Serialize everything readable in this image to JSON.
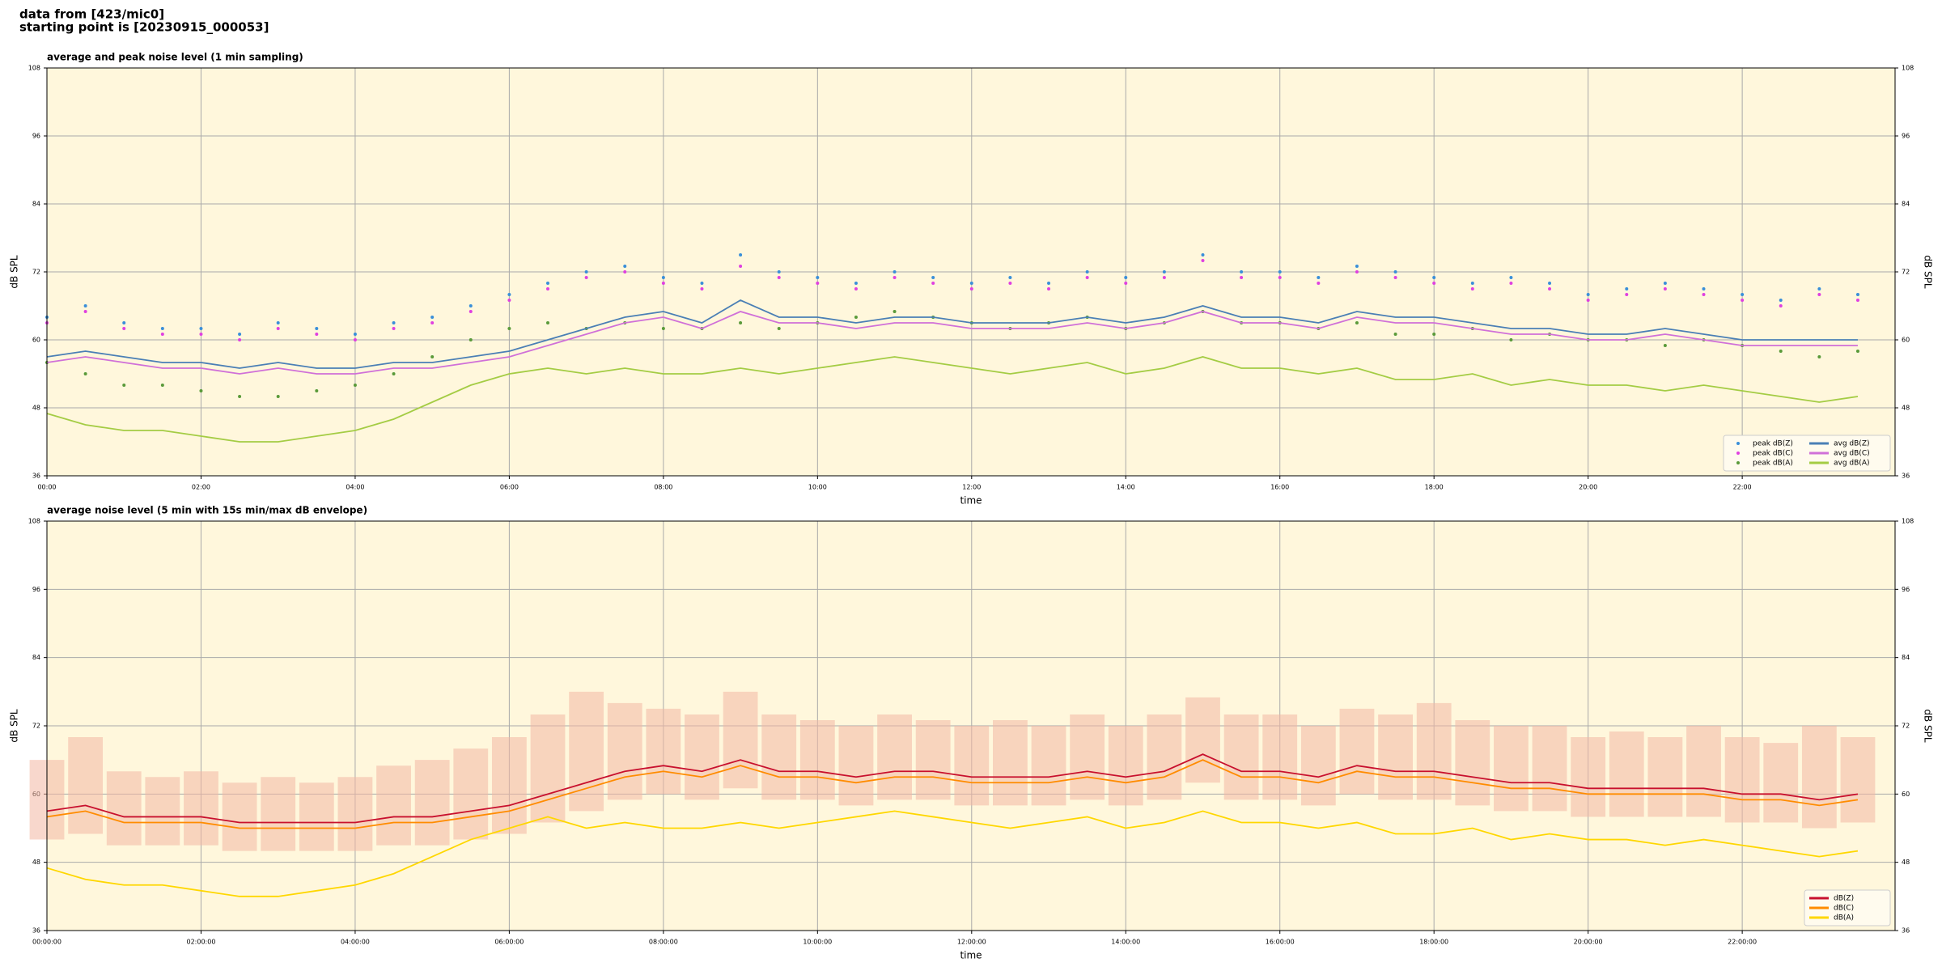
{
  "header": {
    "line1": "data from [423/mic0]",
    "line2": "starting point is [20230915_000053]"
  },
  "chart_data": [
    {
      "type": "line",
      "title": "average and peak noise level (1 min sampling)",
      "xlabel": "time",
      "ylabel": "dB SPL",
      "x": [
        "00:00",
        "00:30",
        "01:00",
        "01:30",
        "02:00",
        "02:30",
        "03:00",
        "03:30",
        "04:00",
        "04:30",
        "05:00",
        "05:30",
        "06:00",
        "06:30",
        "07:00",
        "07:30",
        "08:00",
        "08:30",
        "09:00",
        "09:30",
        "10:00",
        "10:30",
        "11:00",
        "11:30",
        "12:00",
        "12:30",
        "13:00",
        "13:30",
        "14:00",
        "14:30",
        "15:00",
        "15:30",
        "16:00",
        "16:30",
        "17:00",
        "17:30",
        "18:00",
        "18:30",
        "19:00",
        "19:30",
        "20:00",
        "20:30",
        "21:00",
        "21:30",
        "22:00",
        "22:30",
        "23:00",
        "23:30"
      ],
      "xlim": [
        "00:00",
        "23:59"
      ],
      "xticks": [
        "00:00",
        "02:00",
        "04:00",
        "06:00",
        "08:00",
        "10:00",
        "12:00",
        "14:00",
        "16:00",
        "18:00",
        "20:00",
        "22:00"
      ],
      "ylim": [
        36,
        108
      ],
      "yticks": [
        36,
        48,
        60,
        72,
        84,
        96,
        108
      ],
      "grid": true,
      "background": "#fff7dc",
      "legend": "lower right",
      "legend_columns": 2,
      "series": [
        {
          "name": "peak dB(Z)",
          "style": "points",
          "color": "#3a8fd9",
          "values": [
            64,
            66,
            63,
            62,
            62,
            61,
            63,
            62,
            61,
            63,
            64,
            66,
            68,
            70,
            72,
            73,
            71,
            70,
            75,
            72,
            71,
            70,
            72,
            71,
            70,
            71,
            70,
            72,
            71,
            72,
            75,
            72,
            72,
            71,
            73,
            72,
            71,
            70,
            71,
            70,
            68,
            69,
            70,
            69,
            68,
            67,
            69,
            68
          ]
        },
        {
          "name": "peak dB(C)",
          "style": "points",
          "color": "#e040e0",
          "values": [
            63,
            65,
            62,
            61,
            61,
            60,
            62,
            61,
            60,
            62,
            63,
            65,
            67,
            69,
            71,
            72,
            70,
            69,
            73,
            71,
            70,
            69,
            71,
            70,
            69,
            70,
            69,
            71,
            70,
            71,
            74,
            71,
            71,
            70,
            72,
            71,
            70,
            69,
            70,
            69,
            67,
            68,
            69,
            68,
            67,
            66,
            68,
            67
          ]
        },
        {
          "name": "peak dB(A)",
          "style": "points",
          "color": "#5a9a3a",
          "values": [
            56,
            54,
            52,
            52,
            51,
            50,
            50,
            51,
            52,
            54,
            57,
            60,
            62,
            63,
            62,
            63,
            62,
            62,
            63,
            62,
            63,
            64,
            65,
            64,
            63,
            62,
            63,
            64,
            62,
            63,
            65,
            63,
            63,
            62,
            63,
            61,
            61,
            62,
            60,
            61,
            60,
            60,
            59,
            60,
            59,
            58,
            57,
            58
          ]
        },
        {
          "name": "avg dB(Z)",
          "style": "line",
          "color": "#4a7fb5",
          "values": [
            57,
            58,
            57,
            56,
            56,
            55,
            56,
            55,
            55,
            56,
            56,
            57,
            58,
            60,
            62,
            64,
            65,
            63,
            67,
            64,
            64,
            63,
            64,
            64,
            63,
            63,
            63,
            64,
            63,
            64,
            66,
            64,
            64,
            63,
            65,
            64,
            64,
            63,
            62,
            62,
            61,
            61,
            62,
            61,
            60,
            60,
            60,
            60
          ]
        },
        {
          "name": "avg dB(C)",
          "style": "line",
          "color": "#d070d8",
          "values": [
            56,
            57,
            56,
            55,
            55,
            54,
            55,
            54,
            54,
            55,
            55,
            56,
            57,
            59,
            61,
            63,
            64,
            62,
            65,
            63,
            63,
            62,
            63,
            63,
            62,
            62,
            62,
            63,
            62,
            63,
            65,
            63,
            63,
            62,
            64,
            63,
            63,
            62,
            61,
            61,
            60,
            60,
            61,
            60,
            59,
            59,
            59,
            59
          ]
        },
        {
          "name": "avg dB(A)",
          "style": "line",
          "color": "#a4cc44",
          "values": [
            47,
            45,
            44,
            44,
            43,
            42,
            42,
            43,
            44,
            46,
            49,
            52,
            54,
            55,
            54,
            55,
            54,
            54,
            55,
            54,
            55,
            56,
            57,
            56,
            55,
            54,
            55,
            56,
            54,
            55,
            57,
            55,
            55,
            54,
            55,
            53,
            53,
            54,
            52,
            53,
            52,
            52,
            51,
            52,
            51,
            50,
            49,
            50
          ]
        }
      ]
    },
    {
      "type": "line",
      "title": "average noise level (5 min with 15s min/max dB envelope)",
      "xlabel": "time",
      "ylabel": "dB SPL",
      "x": [
        "00:00:00",
        "00:30:00",
        "01:00:00",
        "01:30:00",
        "02:00:00",
        "02:30:00",
        "03:00:00",
        "03:30:00",
        "04:00:00",
        "04:30:00",
        "05:00:00",
        "05:30:00",
        "06:00:00",
        "06:30:00",
        "07:00:00",
        "07:30:00",
        "08:00:00",
        "08:30:00",
        "09:00:00",
        "09:30:00",
        "10:00:00",
        "10:30:00",
        "11:00:00",
        "11:30:00",
        "12:00:00",
        "12:30:00",
        "13:00:00",
        "13:30:00",
        "14:00:00",
        "14:30:00",
        "15:00:00",
        "15:30:00",
        "16:00:00",
        "16:30:00",
        "17:00:00",
        "17:30:00",
        "18:00:00",
        "18:30:00",
        "19:00:00",
        "19:30:00",
        "20:00:00",
        "20:30:00",
        "21:00:00",
        "21:30:00",
        "22:00:00",
        "22:30:00",
        "23:00:00",
        "23:30:00"
      ],
      "xlim": [
        "00:00:00",
        "23:59:00"
      ],
      "xticks": [
        "00:00:00",
        "02:00:00",
        "04:00:00",
        "06:00:00",
        "08:00:00",
        "10:00:00",
        "12:00:00",
        "14:00:00",
        "16:00:00",
        "18:00:00",
        "20:00:00",
        "22:00:00"
      ],
      "ylim": [
        36,
        108
      ],
      "yticks": [
        36,
        48,
        60,
        72,
        84,
        96,
        108
      ],
      "grid": true,
      "background": "#fff7dc",
      "legend": "lower right",
      "legend_columns": 1,
      "envelope": {
        "color": "#f4b8a4",
        "lower": [
          52,
          53,
          51,
          51,
          51,
          50,
          50,
          50,
          50,
          51,
          51,
          52,
          53,
          55,
          57,
          59,
          60,
          59,
          61,
          59,
          59,
          58,
          59,
          59,
          58,
          58,
          58,
          59,
          58,
          59,
          62,
          59,
          59,
          58,
          60,
          59,
          59,
          58,
          57,
          57,
          56,
          56,
          56,
          56,
          55,
          55,
          54,
          55
        ],
        "upper": [
          66,
          70,
          64,
          63,
          64,
          62,
          63,
          62,
          63,
          65,
          66,
          68,
          70,
          74,
          78,
          76,
          75,
          74,
          78,
          74,
          73,
          72,
          74,
          73,
          72,
          73,
          72,
          74,
          72,
          74,
          77,
          74,
          74,
          72,
          75,
          74,
          76,
          73,
          72,
          72,
          70,
          71,
          70,
          72,
          70,
          69,
          72,
          70
        ]
      },
      "series": [
        {
          "name": "dB(Z)",
          "style": "line",
          "color": "#c8102e",
          "values": [
            57,
            58,
            56,
            56,
            56,
            55,
            55,
            55,
            55,
            56,
            56,
            57,
            58,
            60,
            62,
            64,
            65,
            64,
            66,
            64,
            64,
            63,
            64,
            64,
            63,
            63,
            63,
            64,
            63,
            64,
            67,
            64,
            64,
            63,
            65,
            64,
            64,
            63,
            62,
            62,
            61,
            61,
            61,
            61,
            60,
            60,
            59,
            60
          ]
        },
        {
          "name": "dB(C)",
          "style": "line",
          "color": "#ff8c00",
          "values": [
            56,
            57,
            55,
            55,
            55,
            54,
            54,
            54,
            54,
            55,
            55,
            56,
            57,
            59,
            61,
            63,
            64,
            63,
            65,
            63,
            63,
            62,
            63,
            63,
            62,
            62,
            62,
            63,
            62,
            63,
            66,
            63,
            63,
            62,
            64,
            63,
            63,
            62,
            61,
            61,
            60,
            60,
            60,
            60,
            59,
            59,
            58,
            59
          ]
        },
        {
          "name": "dB(A)",
          "style": "line",
          "color": "#ffd700",
          "values": [
            47,
            45,
            44,
            44,
            43,
            42,
            42,
            43,
            44,
            46,
            49,
            52,
            54,
            56,
            54,
            55,
            54,
            54,
            55,
            54,
            55,
            56,
            57,
            56,
            55,
            54,
            55,
            56,
            54,
            55,
            57,
            55,
            55,
            54,
            55,
            53,
            53,
            54,
            52,
            53,
            52,
            52,
            51,
            52,
            51,
            50,
            49,
            50
          ]
        }
      ]
    }
  ]
}
